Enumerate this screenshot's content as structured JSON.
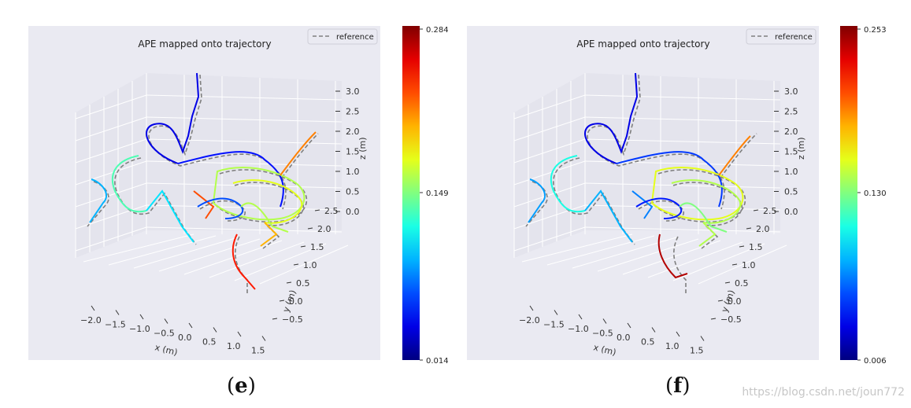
{
  "panels": [
    {
      "title": "APE mapped onto trajectory",
      "legend": "reference",
      "caption": {
        "open": "(",
        "letter": "e",
        "close": ")"
      },
      "colorbar": {
        "max_label": "0.284",
        "mid_label": "0.149",
        "min_label": "0.014"
      }
    },
    {
      "title": "APE mapped onto trajectory",
      "legend": "reference",
      "caption": {
        "open": "(",
        "letter": "f",
        "close": ")"
      },
      "colorbar": {
        "max_label": "0.253",
        "mid_label": "0.130",
        "min_label": "0.006"
      }
    }
  ],
  "watermark": "https://blog.csdn.net/joun772",
  "chart_data": [
    {
      "type": "line3d",
      "title": "APE mapped onto trajectory",
      "xlabel": "x (m)",
      "ylabel": "y (m)",
      "zlabel": "z (m)",
      "x_ticks": [
        "−2.0",
        "−1.5",
        "−1.0",
        "−0.5",
        "0.0",
        "0.5",
        "1.0",
        "1.5"
      ],
      "y_ticks": [
        "−0.5",
        "0.0",
        "0.5",
        "1.0",
        "1.5",
        "2.0",
        "2.5"
      ],
      "z_ticks": [
        "0.0",
        "0.5",
        "1.0",
        "1.5",
        "2.0",
        "2.5",
        "3.0"
      ],
      "series": [
        {
          "name": "reference",
          "style": "dashed",
          "color": "#808080"
        }
      ],
      "colormap": "jet",
      "colorbar": {
        "min": 0.014,
        "mid": 0.149,
        "max": 0.284
      },
      "grid": true,
      "legend_position": "top-right"
    },
    {
      "type": "line3d",
      "title": "APE mapped onto trajectory",
      "xlabel": "x (m)",
      "ylabel": "y (m)",
      "zlabel": "z (m)",
      "x_ticks": [
        "−2.0",
        "−1.5",
        "−1.0",
        "−0.5",
        "0.0",
        "0.5",
        "1.0",
        "1.5"
      ],
      "y_ticks": [
        "−0.5",
        "0.0",
        "0.5",
        "1.0",
        "1.5",
        "2.0",
        "2.5"
      ],
      "z_ticks": [
        "0.0",
        "0.5",
        "1.0",
        "1.5",
        "2.0",
        "2.5",
        "3.0"
      ],
      "series": [
        {
          "name": "reference",
          "style": "dashed",
          "color": "#808080"
        }
      ],
      "colormap": "jet",
      "colorbar": {
        "min": 0.006,
        "mid": 0.13,
        "max": 0.253
      },
      "grid": true,
      "legend_position": "top-right"
    }
  ]
}
